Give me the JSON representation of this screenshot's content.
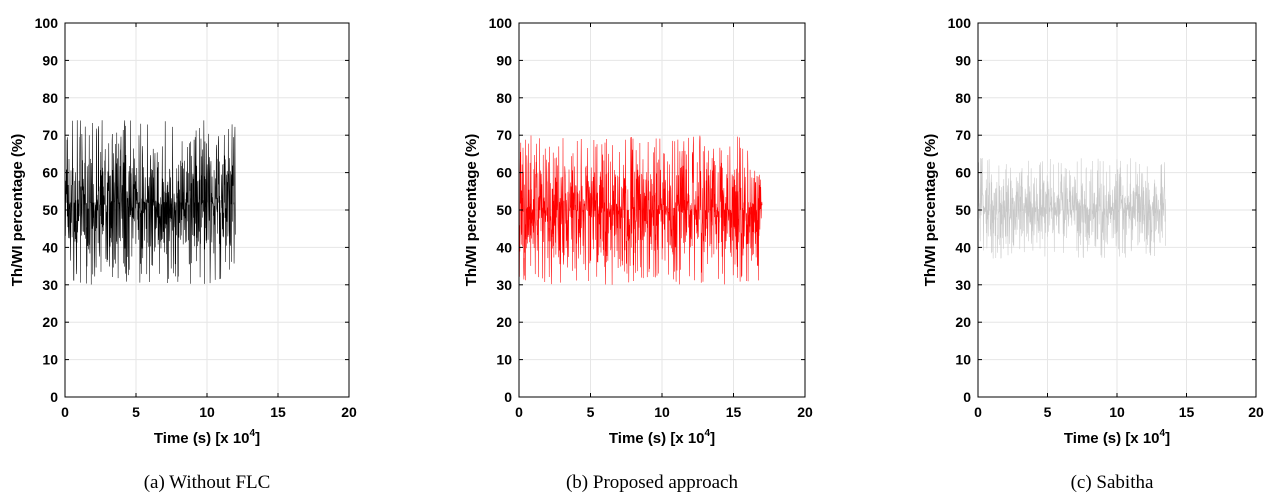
{
  "chart_data": [
    {
      "type": "line",
      "caption": "(a) Without FLC",
      "xlabel": "Time (s) [x 10",
      "xlabel_exponent": "4",
      "xlabel_suffix": "]",
      "ylabel": "Th/WI percentage (%)",
      "xlim": [
        0,
        20
      ],
      "ylim": [
        0,
        100
      ],
      "xticks": [
        0,
        5,
        10,
        15,
        20
      ],
      "yticks": [
        0,
        10,
        20,
        30,
        40,
        50,
        60,
        70,
        80,
        90,
        100
      ],
      "grid": true,
      "series": [
        {
          "color": "#000000",
          "x_range": [
            0,
            12
          ],
          "y_min": 30,
          "y_max": 74,
          "y_mean": 52
        }
      ]
    },
    {
      "type": "line",
      "caption": "(b) Proposed approach",
      "xlabel": "Time (s) [x 10",
      "xlabel_exponent": "4",
      "xlabel_suffix": "]",
      "ylabel": "Th/WI percentage (%)",
      "xlim": [
        0,
        20
      ],
      "ylim": [
        0,
        100
      ],
      "xticks": [
        0,
        5,
        10,
        15,
        20
      ],
      "yticks": [
        0,
        10,
        20,
        30,
        40,
        50,
        60,
        70,
        80,
        90,
        100
      ],
      "grid": true,
      "series": [
        {
          "color": "#ff0000",
          "x_range": [
            0,
            17
          ],
          "y_min": 30,
          "y_max": 70,
          "y_mean": 50
        }
      ]
    },
    {
      "type": "line",
      "caption": "(c) Sabitha",
      "xlabel": "Time (s) [x 10",
      "xlabel_exponent": "4",
      "xlabel_suffix": "]",
      "ylabel": "Th/WI percentage (%)",
      "xlim": [
        0,
        20
      ],
      "ylim": [
        0,
        100
      ],
      "xticks": [
        0,
        5,
        10,
        15,
        20
      ],
      "yticks": [
        0,
        10,
        20,
        30,
        40,
        50,
        60,
        70,
        80,
        90,
        100
      ],
      "grid": true,
      "series": [
        {
          "color": "#c8c8c8",
          "x_range": [
            0,
            13.5
          ],
          "y_min": 37,
          "y_max": 64,
          "y_mean": 50
        }
      ]
    }
  ]
}
